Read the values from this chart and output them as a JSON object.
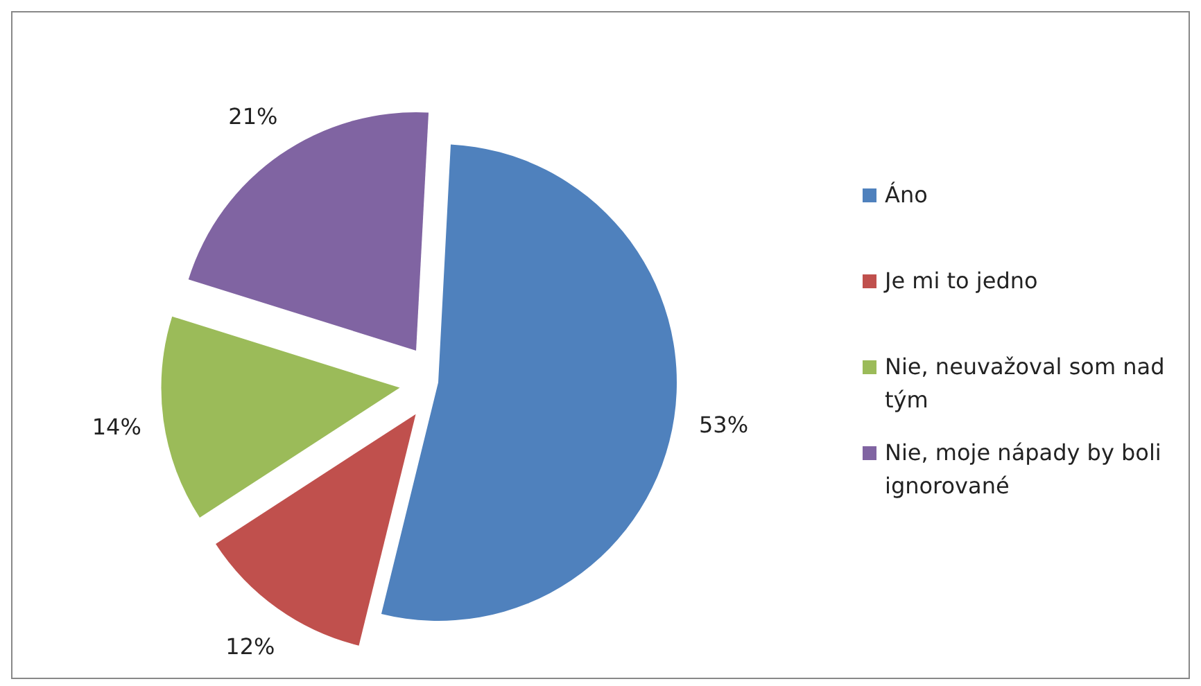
{
  "chart_data": {
    "type": "pie",
    "categories": [
      "Áno",
      "Je mi to jedno",
      "Nie, neuvažoval som nad tým",
      "Nie, moje nápady by boli ignorované"
    ],
    "values": [
      53,
      12,
      14,
      21
    ],
    "colors": [
      "#4f81bd",
      "#c0504d",
      "#9bbb59",
      "#8064a2"
    ],
    "value_labels": [
      "53%",
      "12%",
      "14%",
      "21%"
    ],
    "legend": "right"
  }
}
